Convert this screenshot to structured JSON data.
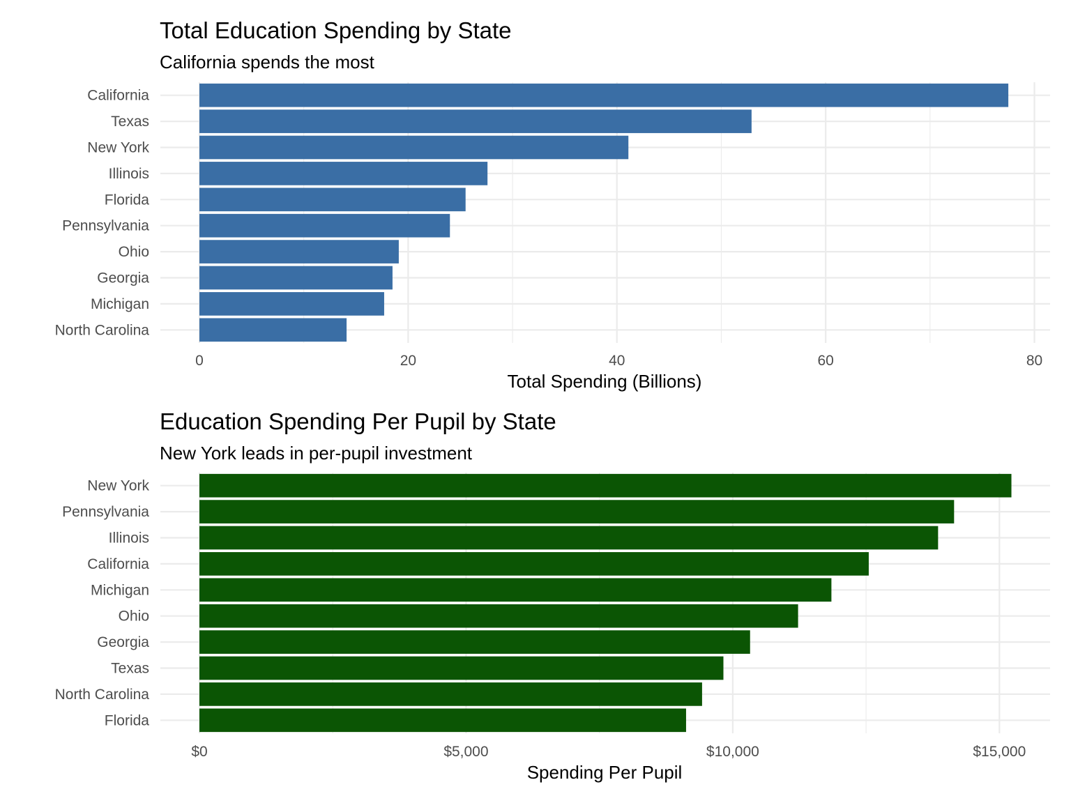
{
  "chart_data": [
    {
      "type": "bar",
      "orientation": "horizontal",
      "title": "Total Education Spending by State",
      "subtitle": "California spends the most",
      "xlabel": "Total Spending (Billions)",
      "ylabel": "",
      "categories": [
        "California",
        "Texas",
        "New York",
        "Illinois",
        "Florida",
        "Pennsylvania",
        "Ohio",
        "Georgia",
        "Michigan",
        "North Carolina"
      ],
      "values": [
        77.5,
        52.9,
        41.1,
        27.6,
        25.5,
        24.0,
        19.1,
        18.5,
        17.7,
        14.1
      ],
      "xlim": [
        0,
        81.5
      ],
      "xticks": [
        0,
        20,
        40,
        60,
        80
      ],
      "xtick_labels": [
        "0",
        "20",
        "40",
        "60",
        "80"
      ],
      "bar_color": "#3a6ea5",
      "grid": true,
      "legend": "none"
    },
    {
      "type": "bar",
      "orientation": "horizontal",
      "title": "Education Spending Per Pupil by State",
      "subtitle": "New York leads in per-pupil investment",
      "xlabel": "Spending Per Pupil",
      "ylabel": "",
      "categories": [
        "New York",
        "Pennsylvania",
        "Illinois",
        "California",
        "Michigan",
        "Ohio",
        "Georgia",
        "Texas",
        "North Carolina",
        "Florida"
      ],
      "values": [
        15225,
        14150,
        13850,
        12550,
        11850,
        11225,
        10325,
        9825,
        9425,
        9125
      ],
      "xlim": [
        0,
        15950
      ],
      "xticks": [
        0,
        5000,
        10000,
        15000
      ],
      "xtick_labels": [
        "$0",
        "$5,000",
        "$10,000",
        "$15,000"
      ],
      "bar_color": "#0b5504",
      "grid": true,
      "legend": "none"
    }
  ]
}
